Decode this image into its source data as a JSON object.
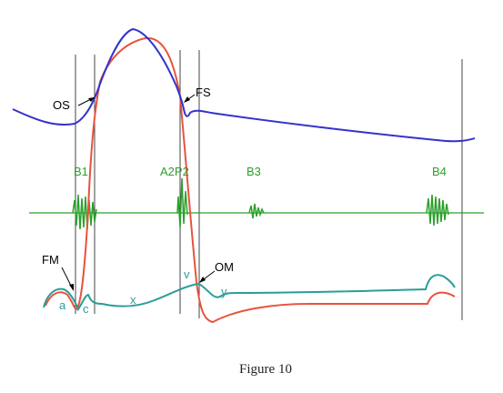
{
  "caption": "Figure 10",
  "colors": {
    "aortic": "#e8533d",
    "ventricular": "#3333cc",
    "atrial": "#2a9d9a",
    "sound": "#2ca02c",
    "event_line": "#444444",
    "text": "#000000"
  },
  "sound_labels": {
    "b1": "B1",
    "a2p2": "A2P2",
    "b3": "B3",
    "b4": "B4"
  },
  "valve_labels": {
    "os": "OS",
    "fs": "FS",
    "fm": "FM",
    "om": "OM"
  },
  "wave_labels": {
    "a": "a",
    "c": "c",
    "x": "x",
    "v": "v",
    "y": "y"
  }
}
